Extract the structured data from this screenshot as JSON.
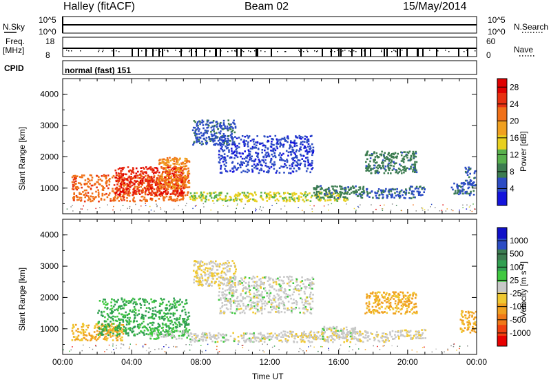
{
  "header": {
    "station": "Halley (fitACF)",
    "beam": "Beam 02",
    "date": "15/May/2014"
  },
  "summary_labels": {
    "nsky": "N.Sky",
    "nsky_top": "10^5",
    "nsky_bottom": "10^0",
    "nsearch": "N.Search",
    "nsearch_top": "10^5",
    "nsearch_bottom": "10^0",
    "freq_label": "Freq.",
    "freq_unit": "[MHz]",
    "freq_top": "18",
    "freq_bottom": "8",
    "nave": "Nave",
    "nave_top": "60",
    "nave_bottom": "0",
    "cpid": "CPID",
    "cpid_value": "normal (fast) 151"
  },
  "colors": {
    "power_scale": [
      "#1414dc",
      "#2c4cc4",
      "#3c7c50",
      "#58b04c",
      "#e8d020",
      "#f0a020",
      "#f07018",
      "#e83010",
      "#e00000"
    ],
    "velocity_scale": [
      "#e80000",
      "#f04010",
      "#f07818",
      "#f0a020",
      "#f0c830",
      "#c8c8c8",
      "#40c840",
      "#30a050",
      "#3c7c50",
      "#2c4cc4",
      "#1010c8"
    ]
  },
  "chart_data": [
    {
      "type": "heatmap",
      "ylabel": "Slant Range [km]",
      "xlabel": "",
      "x_ticks": [
        "00:00",
        "04:00",
        "08:00",
        "12:00",
        "16:00",
        "20:00",
        "00:00"
      ],
      "y_ticks": [
        "1000",
        "2000",
        "3000",
        "4000"
      ],
      "xlim": [
        0,
        24
      ],
      "ylim": [
        180,
        4500
      ],
      "colorbar": {
        "label": "Power [dB]",
        "ticks": [
          "4",
          "8",
          "12",
          "16",
          "20",
          "24",
          "28"
        ],
        "range": [
          0,
          30
        ]
      },
      "blobs": [
        {
          "t0": 0.5,
          "t1": 7.3,
          "r0": 600,
          "r1": 1450,
          "value": 22
        },
        {
          "t0": 3.0,
          "t1": 7.0,
          "r0": 800,
          "r1": 1700,
          "value": 26
        },
        {
          "t0": 5.5,
          "t1": 7.3,
          "r0": 1000,
          "r1": 2000,
          "value": 20
        },
        {
          "t0": 7.3,
          "t1": 16.5,
          "r0": 600,
          "r1": 900,
          "value": 14
        },
        {
          "t0": 14.5,
          "t1": 17.5,
          "r0": 700,
          "r1": 1100,
          "value": 8
        },
        {
          "t0": 17.5,
          "t1": 20.5,
          "r0": 700,
          "r1": 1000,
          "value": 6
        },
        {
          "t0": 20.0,
          "t1": 21.0,
          "r0": 800,
          "r1": 1100,
          "value": 6
        },
        {
          "t0": 22.5,
          "t1": 23.8,
          "r0": 800,
          "r1": 1200,
          "value": 6
        },
        {
          "t0": 17.5,
          "t1": 20.5,
          "r0": 1500,
          "r1": 2200,
          "value": 8
        },
        {
          "t0": 7.5,
          "t1": 10.0,
          "r0": 2400,
          "r1": 3200,
          "value": 6
        },
        {
          "t0": 9.0,
          "t1": 14.5,
          "r0": 1500,
          "r1": 2700,
          "value": 4
        },
        {
          "t0": 23.3,
          "t1": 24.0,
          "r0": 1100,
          "r1": 1700,
          "value": 6
        }
      ]
    },
    {
      "type": "heatmap",
      "ylabel": "Slant Range [km]",
      "xlabel": "Time UT",
      "x_ticks": [
        "00:00",
        "04:00",
        "08:00",
        "12:00",
        "16:00",
        "20:00",
        "00:00"
      ],
      "y_ticks": [
        "1000",
        "2000",
        "3000",
        "4000"
      ],
      "xlim": [
        0,
        24
      ],
      "ylim": [
        180,
        4500
      ],
      "colorbar": {
        "label": "Velocity [m s⁻¹]",
        "ticks": [
          "1000",
          "500",
          "100",
          "25",
          "-25",
          "-100",
          "-500",
          "-1000"
        ],
        "range": [
          -1000,
          1000
        ]
      },
      "blobs": [
        {
          "t0": 0.5,
          "t1": 3.5,
          "r0": 650,
          "r1": 1200,
          "value": -300
        },
        {
          "t0": 2.0,
          "t1": 7.3,
          "r0": 800,
          "r1": 2000,
          "value": 300
        },
        {
          "t0": 5.0,
          "t1": 7.3,
          "r0": 700,
          "r1": 1000,
          "value": 80
        },
        {
          "t0": 7.3,
          "t1": 12.5,
          "r0": 600,
          "r1": 900,
          "value": 0
        },
        {
          "t0": 12.5,
          "t1": 19.0,
          "r0": 600,
          "r1": 950,
          "value": -60
        },
        {
          "t0": 15.0,
          "t1": 17.0,
          "r0": 700,
          "r1": 1100,
          "value": 0
        },
        {
          "t0": 19.0,
          "t1": 21.0,
          "r0": 700,
          "r1": 1000,
          "value": -60
        },
        {
          "t0": 17.5,
          "t1": 20.5,
          "r0": 1500,
          "r1": 2200,
          "value": -300
        },
        {
          "t0": 7.5,
          "t1": 10.0,
          "r0": 2400,
          "r1": 3200,
          "value": -100
        },
        {
          "t0": 9.0,
          "t1": 14.5,
          "r0": 1500,
          "r1": 2700,
          "value": 0
        },
        {
          "t0": 23.0,
          "t1": 24.0,
          "r0": 900,
          "r1": 1600,
          "value": -300
        }
      ]
    }
  ]
}
